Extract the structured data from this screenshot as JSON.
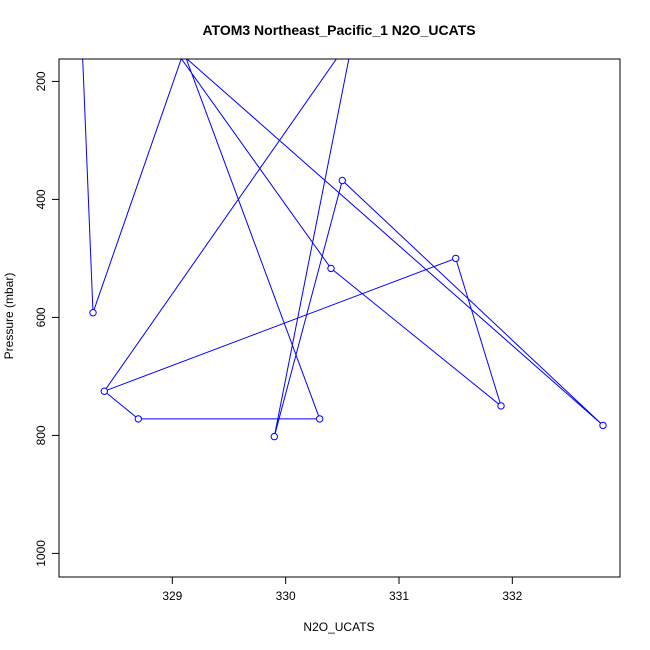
{
  "chart_data": {
    "type": "line",
    "title": "ATOM3 Northeast_Pacific_1 N2O_UCATS",
    "xlabel": "N2O_UCATS",
    "ylabel": "Pressure (mbar)",
    "xlim": [
      328.0,
      332.95
    ],
    "ylim": [
      1040,
      162
    ],
    "y_reversed": true,
    "x_ticks": [
      329,
      330,
      331,
      332
    ],
    "y_ticks": [
      200,
      400,
      600,
      800,
      1000
    ],
    "color": "#0000ff",
    "series": [
      {
        "name": "",
        "points": [
          {
            "x": 328.2,
            "y": 120
          },
          {
            "x": 328.3,
            "y": 592
          },
          {
            "x": 329.1,
            "y": 150
          },
          {
            "x": 330.3,
            "y": 772
          },
          {
            "x": 328.7,
            "y": 772
          },
          {
            "x": 328.4,
            "y": 725
          },
          {
            "x": 330.6,
            "y": 120
          },
          {
            "x": 329.9,
            "y": 802
          },
          {
            "x": 330.5,
            "y": 368
          },
          {
            "x": 332.8,
            "y": 783
          },
          {
            "x": 329.0,
            "y": 140
          },
          {
            "x": 330.4,
            "y": 517
          },
          {
            "x": 331.9,
            "y": 750
          },
          {
            "x": 331.5,
            "y": 500
          },
          {
            "x": 328.4,
            "y": 725
          }
        ],
        "markers": [
          {
            "x": 328.3,
            "y": 592
          },
          {
            "x": 328.4,
            "y": 725
          },
          {
            "x": 328.7,
            "y": 772
          },
          {
            "x": 330.3,
            "y": 772
          },
          {
            "x": 329.9,
            "y": 802
          },
          {
            "x": 330.5,
            "y": 368
          },
          {
            "x": 330.4,
            "y": 517
          },
          {
            "x": 331.5,
            "y": 500
          },
          {
            "x": 331.9,
            "y": 750
          },
          {
            "x": 332.8,
            "y": 783
          }
        ]
      }
    ]
  }
}
